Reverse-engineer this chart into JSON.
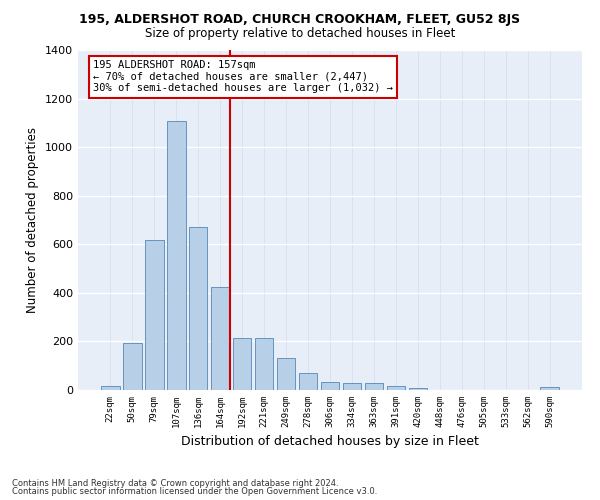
{
  "title1": "195, ALDERSHOT ROAD, CHURCH CROOKHAM, FLEET, GU52 8JS",
  "title2": "Size of property relative to detached houses in Fleet",
  "xlabel": "Distribution of detached houses by size in Fleet",
  "ylabel": "Number of detached properties",
  "footer1": "Contains HM Land Registry data © Crown copyright and database right 2024.",
  "footer2": "Contains public sector information licensed under the Open Government Licence v3.0.",
  "annotation_line1": "195 ALDERSHOT ROAD: 157sqm",
  "annotation_line2": "← 70% of detached houses are smaller (2,447)",
  "annotation_line3": "30% of semi-detached houses are larger (1,032) →",
  "bar_color": "#b8cfe8",
  "bar_edge_color": "#5588bb",
  "vline_color": "#cc0000",
  "annotation_box_color": "#cc0000",
  "background_color": "#e8eef8",
  "grid_color_h": "#ffffff",
  "grid_color_v": "#d4daf0",
  "categories": [
    "22sqm",
    "50sqm",
    "79sqm",
    "107sqm",
    "136sqm",
    "164sqm",
    "192sqm",
    "221sqm",
    "249sqm",
    "278sqm",
    "306sqm",
    "334sqm",
    "363sqm",
    "391sqm",
    "420sqm",
    "448sqm",
    "476sqm",
    "505sqm",
    "533sqm",
    "562sqm",
    "590sqm"
  ],
  "values": [
    18,
    193,
    617,
    1107,
    671,
    425,
    215,
    215,
    130,
    70,
    35,
    30,
    27,
    18,
    10,
    0,
    0,
    0,
    0,
    0,
    12
  ],
  "ylim": [
    0,
    1400
  ],
  "yticks": [
    0,
    200,
    400,
    600,
    800,
    1000,
    1200,
    1400
  ],
  "vline_x": 5.45,
  "figsize": [
    6.0,
    5.0
  ],
  "dpi": 100
}
